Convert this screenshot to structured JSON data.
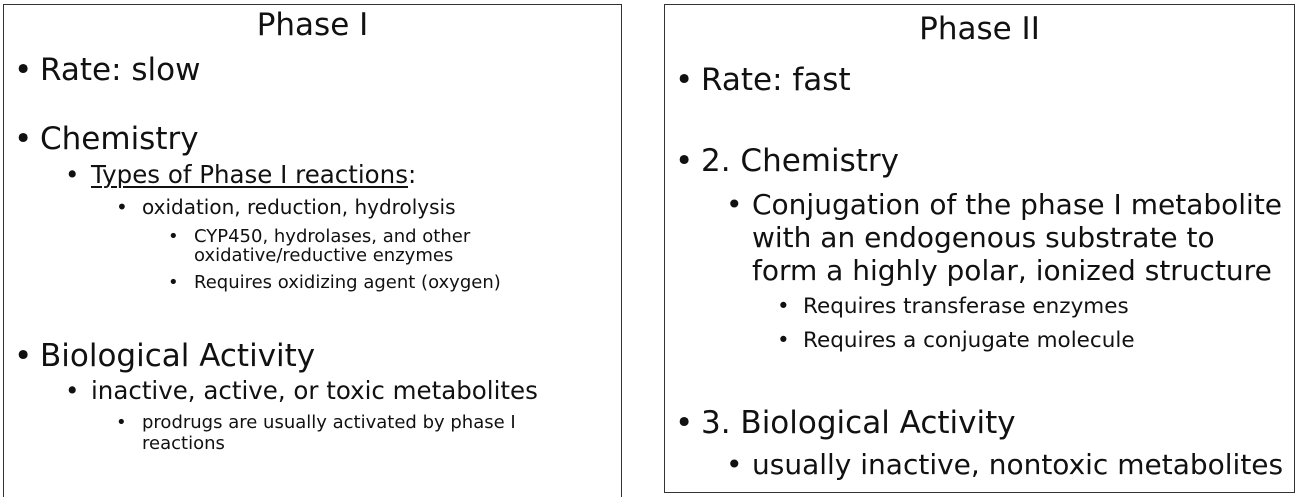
{
  "phase1": {
    "title": "Phase I",
    "rate": "Rate: slow",
    "chemistry": "Chemistry",
    "types_label": "Types of Phase I reactions",
    "types_colon": ":",
    "reactions": "oxidation, reduction, hydrolysis",
    "enzymes_line1": "CYP450, hydrolases, and other",
    "enzymes_line2": "oxidative/reductive enzymes",
    "oxidizing": "Requires oxidizing agent (oxygen)",
    "bio_activity": "Biological Activity",
    "metabolites": "inactive, active, or toxic metabolites",
    "prodrugs_line1": "prodrugs are usually activated by phase I",
    "prodrugs_line2": "reactions"
  },
  "phase2": {
    "title": "Phase II",
    "rate": "Rate: fast",
    "chemistry": "2. Chemistry",
    "conj_line1": "Conjugation of the phase I metabolite",
    "conj_line2": "with an endogenous substrate to",
    "conj_line3": "form a highly polar, ionized structure",
    "transferase": "Requires transferase enzymes",
    "conjugate": "Requires a conjugate molecule",
    "bio_activity": "3. Biological Activity",
    "metabolites": "usually inactive, nontoxic metabolites"
  },
  "bullet": "•"
}
